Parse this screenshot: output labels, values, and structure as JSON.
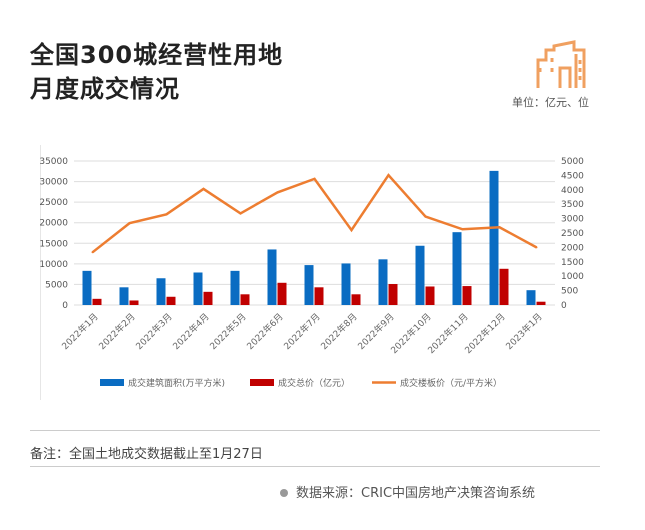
{
  "header": {
    "title_line1": "全国300城经营性用地",
    "title_line2": "月度成交情况",
    "unit": "单位：亿元、位"
  },
  "footer": {
    "note": "备注：全国土地成交数据截止至1月27日",
    "source": "数据来源：CRIC中国房地产决策咨询系统"
  },
  "colors": {
    "area": "#0a6cc2",
    "total": "#c00000",
    "price": "#ed7d31",
    "logo": "#f0a060"
  },
  "icons": {
    "logo": "buildings-icon",
    "source_bullet": "dot-icon"
  },
  "chart_data": {
    "type": "bar",
    "categories": [
      "2022年1月",
      "2022年2月",
      "2022年3月",
      "2022年4月",
      "2022年5月",
      "2022年6月",
      "2022年7月",
      "2022年8月",
      "2022年9月",
      "2022年10月",
      "2022年11月",
      "2022年12月",
      "2023年1月"
    ],
    "series": [
      {
        "name": "成交建筑面积(万平方米)",
        "type": "bar",
        "axis": "left",
        "values": [
          8300,
          4300,
          6500,
          7900,
          8300,
          13500,
          9700,
          10100,
          11100,
          14400,
          17700,
          32600,
          3600
        ]
      },
      {
        "name": "成交总价（亿元）",
        "type": "bar",
        "axis": "left",
        "values": [
          1500,
          1100,
          2000,
          3200,
          2600,
          5400,
          4300,
          2600,
          5100,
          4500,
          4600,
          8800,
          800
        ]
      },
      {
        "name": "成交楼板价（元/平方米）",
        "type": "line",
        "axis": "right",
        "values": [
          1830,
          2840,
          3150,
          4030,
          3180,
          3910,
          4380,
          2600,
          4510,
          3070,
          2630,
          2700,
          2000
        ]
      }
    ],
    "ylim_left": [
      0,
      35000
    ],
    "yticks_left": [
      "0",
      "5000",
      "10000",
      "15000",
      "20000",
      "25000",
      "30000",
      "35000"
    ],
    "ylim_right": [
      0,
      5000
    ],
    "yticks_right": [
      "0",
      "500",
      "1000",
      "1500",
      "2000",
      "2500",
      "3000",
      "3500",
      "4000",
      "4500",
      "5000"
    ],
    "grid": true,
    "legend": "bottom"
  }
}
